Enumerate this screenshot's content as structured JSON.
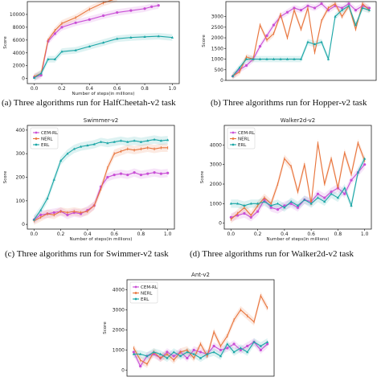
{
  "colors": {
    "CEM-RL": "#c94fd6",
    "NERL": "#e8743b",
    "ERL": "#1aa6a6"
  },
  "captions": [
    "(a)  Three algorithms run for HalfCheetah-v2 task",
    "(b)  Three algorithms run for Hopper-v2 task",
    "(c)  Three algorithms run for Swimmer-v2 task",
    "(d)  Three algorithms run for Walker2d-v2 task"
  ],
  "chart_data": [
    {
      "type": "line",
      "title": "",
      "xlabel": "Number of steps(in millions)",
      "ylabel": "Score",
      "xlim": [
        -0.05,
        1.05
      ],
      "ylim": [
        -800,
        12000
      ],
      "xticks": [
        0.0,
        0.2,
        0.4,
        0.6,
        0.8,
        1.0
      ],
      "xtick_labels": [
        "0.0",
        "0.2",
        "0.4",
        "0.6",
        "0.8",
        "1.0"
      ],
      "yticks": [
        0,
        2000,
        4000,
        6000,
        8000,
        10000
      ],
      "ytick_labels": [
        "0",
        "2000",
        "4000",
        "6000",
        "8000",
        "10000"
      ],
      "legend": null,
      "series": [
        {
          "key": "CEM-RL",
          "x": [
            0.0,
            0.05,
            0.1,
            0.15,
            0.2,
            0.3,
            0.4,
            0.5,
            0.6,
            0.7,
            0.8,
            0.85,
            0.9
          ],
          "y": [
            200,
            500,
            5800,
            7000,
            8000,
            8700,
            9200,
            9800,
            10300,
            10600,
            10900,
            11200,
            11400
          ]
        },
        {
          "key": "NERL",
          "x": [
            0.0,
            0.05,
            0.1,
            0.15,
            0.2,
            0.3,
            0.4,
            0.5,
            0.6
          ],
          "y": [
            300,
            800,
            6000,
            7500,
            8600,
            9500,
            10800,
            11800,
            12500
          ]
        },
        {
          "key": "ERL",
          "x": [
            0.0,
            0.05,
            0.1,
            0.15,
            0.2,
            0.3,
            0.4,
            0.5,
            0.6,
            0.7,
            0.8,
            0.9,
            1.0
          ],
          "y": [
            100,
            800,
            3000,
            3000,
            4200,
            4400,
            5000,
            5600,
            6200,
            6400,
            6500,
            6600,
            6400
          ]
        }
      ]
    },
    {
      "type": "line",
      "title": "",
      "xlabel": "",
      "ylabel": "Score",
      "xlim": [
        -0.05,
        1.05
      ],
      "ylim": [
        0,
        3700
      ],
      "xticks": [],
      "xtick_labels": [],
      "yticks": [
        0,
        500,
        1000,
        1500,
        2000,
        2500,
        3000
      ],
      "ytick_labels": [
        "0",
        "500",
        "1000",
        "1500",
        "2000",
        "2500",
        "3000"
      ],
      "legend": null,
      "series": [
        {
          "key": "CEM-RL",
          "x": [
            0.0,
            0.05,
            0.1,
            0.15,
            0.2,
            0.25,
            0.3,
            0.35,
            0.4,
            0.45,
            0.5,
            0.55,
            0.6,
            0.65,
            0.7,
            0.75,
            0.8,
            0.85,
            0.9,
            0.95,
            1.0
          ],
          "y": [
            200,
            500,
            700,
            1000,
            1600,
            2100,
            2600,
            3000,
            3200,
            3400,
            3300,
            3500,
            3400,
            3600,
            3300,
            3500,
            3400,
            3600,
            3300,
            3500,
            3400
          ]
        },
        {
          "key": "NERL",
          "x": [
            0.0,
            0.05,
            0.1,
            0.15,
            0.2,
            0.25,
            0.3,
            0.35,
            0.4,
            0.45,
            0.5,
            0.55,
            0.6,
            0.65,
            0.7,
            0.75,
            0.8,
            0.85,
            0.9,
            0.95,
            1.0
          ],
          "y": [
            200,
            400,
            1100,
            1000,
            2600,
            1900,
            2200,
            3100,
            2000,
            3300,
            2400,
            3400,
            1300,
            2800,
            3400,
            3600,
            3000,
            3500,
            2400,
            3600,
            3300
          ]
        },
        {
          "key": "ERL",
          "x": [
            0.0,
            0.05,
            0.1,
            0.15,
            0.2,
            0.25,
            0.3,
            0.35,
            0.4,
            0.45,
            0.5,
            0.55,
            0.6,
            0.65,
            0.7,
            0.75,
            0.8,
            0.85,
            0.9,
            0.95,
            1.0
          ],
          "y": [
            200,
            600,
            1000,
            1000,
            1000,
            1000,
            1000,
            1000,
            1000,
            1000,
            1000,
            1800,
            1700,
            1800,
            1000,
            3000,
            3300,
            3500,
            2600,
            3400,
            3300
          ]
        }
      ]
    },
    {
      "type": "line",
      "title": "Swimmer-v2",
      "xlabel": "Number of steps(in millions)",
      "ylabel": "Score",
      "xlim": [
        -0.05,
        1.05
      ],
      "ylim": [
        -20,
        420
      ],
      "xticks": [
        0.0,
        0.2,
        0.4,
        0.6,
        0.8,
        1.0
      ],
      "xtick_labels": [
        "0.0",
        "0.2",
        "0.4",
        "0.6",
        "0.8",
        "1.0"
      ],
      "yticks": [
        0,
        100,
        200,
        300,
        400
      ],
      "ytick_labels": [
        "0",
        "100",
        "200",
        "300",
        "400"
      ],
      "legend": "top-left",
      "series": [
        {
          "key": "CEM-RL",
          "x": [
            0.0,
            0.05,
            0.1,
            0.15,
            0.2,
            0.25,
            0.3,
            0.35,
            0.4,
            0.45,
            0.5,
            0.55,
            0.6,
            0.65,
            0.7,
            0.75,
            0.8,
            0.85,
            0.9,
            0.95,
            1.0
          ],
          "y": [
            20,
            40,
            45,
            50,
            55,
            40,
            50,
            45,
            60,
            80,
            160,
            200,
            210,
            215,
            210,
            220,
            210,
            215,
            220,
            215,
            218
          ]
        },
        {
          "key": "NERL",
          "x": [
            0.0,
            0.05,
            0.1,
            0.15,
            0.2,
            0.25,
            0.3,
            0.35,
            0.4,
            0.45,
            0.5,
            0.55,
            0.6,
            0.65,
            0.7,
            0.75,
            0.8,
            0.85,
            0.9,
            0.95,
            1.0
          ],
          "y": [
            15,
            30,
            45,
            40,
            55,
            50,
            55,
            50,
            55,
            80,
            150,
            240,
            300,
            310,
            320,
            315,
            320,
            325,
            320,
            325,
            325
          ]
        },
        {
          "key": "ERL",
          "x": [
            0.0,
            0.05,
            0.1,
            0.15,
            0.2,
            0.25,
            0.3,
            0.35,
            0.4,
            0.45,
            0.5,
            0.55,
            0.6,
            0.65,
            0.7,
            0.75,
            0.8,
            0.85,
            0.9,
            0.95,
            1.0
          ],
          "y": [
            20,
            60,
            110,
            190,
            270,
            300,
            320,
            330,
            335,
            340,
            350,
            345,
            350,
            355,
            350,
            355,
            350,
            355,
            360,
            355,
            358
          ]
        }
      ]
    },
    {
      "type": "line",
      "title": "Walker2d-v2",
      "xlabel": "Number of steps(in millions)",
      "ylabel": "Score",
      "xlim": [
        -0.05,
        1.05
      ],
      "ylim": [
        -300,
        5000
      ],
      "xticks": [
        0.0,
        0.2,
        0.4,
        0.6,
        0.8,
        1.0
      ],
      "xtick_labels": [
        "0.0",
        "0.2",
        "0.4",
        "0.6",
        "0.8",
        "1.0"
      ],
      "yticks": [
        0,
        1000,
        2000,
        3000,
        4000
      ],
      "ytick_labels": [
        "0",
        "1000",
        "2000",
        "3000",
        "4000"
      ],
      "legend": "top-left",
      "series": [
        {
          "key": "CEM-RL",
          "x": [
            0.0,
            0.05,
            0.1,
            0.15,
            0.2,
            0.25,
            0.3,
            0.35,
            0.4,
            0.45,
            0.5,
            0.55,
            0.6,
            0.65,
            0.7,
            0.75,
            0.8,
            0.85,
            0.9,
            0.95,
            1.0
          ],
          "y": [
            300,
            400,
            500,
            300,
            600,
            1200,
            800,
            700,
            900,
            1000,
            800,
            1200,
            1100,
            1500,
            1300,
            1600,
            1800,
            1500,
            2200,
            2600,
            3000
          ]
        },
        {
          "key": "NERL",
          "x": [
            0.0,
            0.05,
            0.1,
            0.15,
            0.2,
            0.25,
            0.3,
            0.35,
            0.4,
            0.45,
            0.5,
            0.55,
            0.6,
            0.65,
            0.7,
            0.75,
            0.8,
            0.85,
            0.9,
            0.95,
            1.0
          ],
          "y": [
            200,
            500,
            800,
            400,
            900,
            1300,
            1000,
            2000,
            3300,
            2900,
            1600,
            3000,
            1000,
            4100,
            2000,
            3300,
            1800,
            3600,
            2500,
            4100,
            3200
          ]
        },
        {
          "key": "ERL",
          "x": [
            0.0,
            0.05,
            0.1,
            0.15,
            0.2,
            0.25,
            0.3,
            0.35,
            0.4,
            0.45,
            0.5,
            0.55,
            0.6,
            0.65,
            0.7,
            0.75,
            0.8,
            0.85,
            0.9,
            0.95,
            1.0
          ],
          "y": [
            1000,
            1000,
            900,
            1000,
            1000,
            1100,
            900,
            1000,
            800,
            1100,
            900,
            1200,
            1000,
            1300,
            1100,
            1500,
            1300,
            1800,
            900,
            2600,
            3300
          ]
        }
      ]
    },
    {
      "type": "line",
      "title": "Ant-v2",
      "xlabel": "",
      "ylabel": "Score",
      "xlim": [
        -0.05,
        1.05
      ],
      "ylim": [
        -300,
        4500
      ],
      "xticks": [],
      "xtick_labels": [],
      "yticks": [
        0,
        1000,
        2000,
        3000,
        4000
      ],
      "ytick_labels": [
        "0",
        "1000",
        "2000",
        "3000",
        "4000"
      ],
      "legend": "top-left",
      "series": [
        {
          "key": "CEM-RL",
          "x": [
            0.0,
            0.05,
            0.1,
            0.15,
            0.2,
            0.25,
            0.3,
            0.35,
            0.4,
            0.45,
            0.5,
            0.55,
            0.6,
            0.65,
            0.7,
            0.75,
            0.8,
            0.85,
            0.9,
            0.95,
            1.0
          ],
          "y": [
            900,
            200,
            700,
            800,
            600,
            900,
            700,
            900,
            600,
            1000,
            900,
            800,
            1200,
            1000,
            1100,
            1300,
            1000,
            1200,
            1400,
            1000,
            1300
          ]
        },
        {
          "key": "NERL",
          "x": [
            0.0,
            0.05,
            0.1,
            0.15,
            0.2,
            0.25,
            0.3,
            0.35,
            0.4,
            0.45,
            0.5,
            0.55,
            0.6,
            0.65,
            0.7,
            0.75,
            0.8,
            0.85,
            0.9,
            0.95,
            1.0
          ],
          "y": [
            1100,
            500,
            300,
            900,
            600,
            800,
            500,
            900,
            1000,
            600,
            1300,
            700,
            1900,
            1200,
            1700,
            2500,
            3000,
            2700,
            2400,
            3700,
            3100
          ]
        },
        {
          "key": "ERL",
          "x": [
            0.0,
            0.05,
            0.1,
            0.15,
            0.2,
            0.25,
            0.3,
            0.35,
            0.4,
            0.45,
            0.5,
            0.55,
            0.6,
            0.65,
            0.7,
            0.75,
            0.8,
            0.85,
            0.9,
            0.95,
            1.0
          ],
          "y": [
            800,
            800,
            700,
            900,
            800,
            600,
            900,
            700,
            900,
            800,
            600,
            800,
            900,
            700,
            1300,
            900,
            1100,
            900,
            1400,
            1200,
            1400
          ]
        }
      ]
    }
  ]
}
